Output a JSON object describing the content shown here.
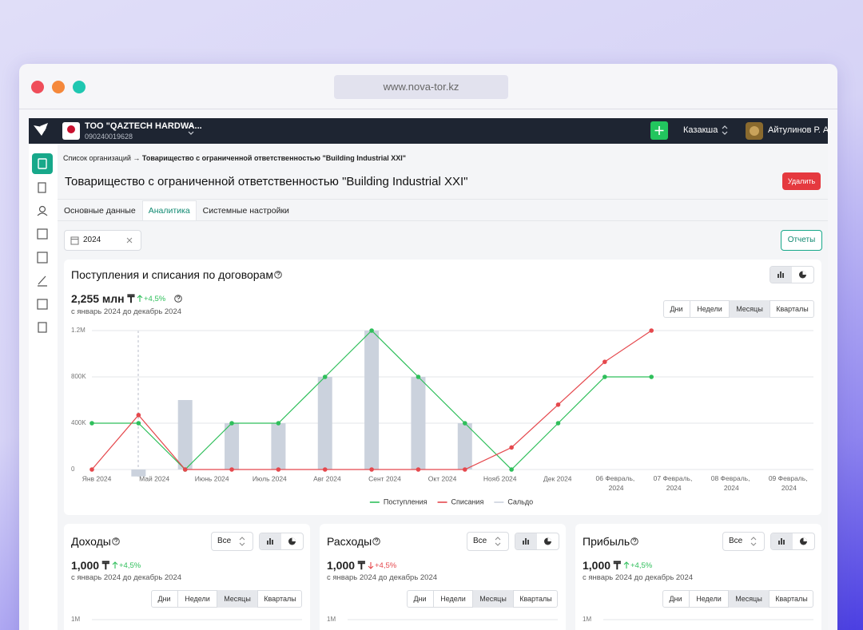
{
  "browser": {
    "url": "www.nova-tor.kz"
  },
  "header": {
    "company": "ТОО \"QAZTECH HARDWA...",
    "company_id": "090240019628",
    "language": "Казакша",
    "user": "Айтулинов Р. А."
  },
  "breadcrumb": {
    "root": "Список организаций",
    "separator": "→",
    "current": "Товарищество с ограниченной ответственностью \"Building Industrial XXI\""
  },
  "page": {
    "title": "Товарищество с ограниченной ответственностью \"Building Industrial XXI\"",
    "delete_button": "Удалить",
    "tabs": [
      "Основные данные",
      "Аналитика",
      "Системные настройки"
    ],
    "active_tab": 1,
    "year_filter": "2024",
    "reports_button": "Отчеты"
  },
  "chart_data": {
    "type": "line",
    "title": "Поступления и списания по договорам",
    "total": "2,255 млн ₸",
    "change": "+4,5%",
    "change_direction": "up",
    "period": "с январь 2024 до декабрь 2024",
    "period_options": [
      "Дни",
      "Недели",
      "Месяцы",
      "Кварталы"
    ],
    "active_period": 2,
    "categories": [
      "Янв 2024",
      "Май 2024",
      "Июнь 2024",
      "Июль 2024",
      "Авг 2024",
      "Сент 2024",
      "Окт 2024",
      "Нояб 2024",
      "Дек 2024",
      "06 Февраль, 2024",
      "07 Февраль, 2024",
      "08 Февраль, 2024",
      "09 Февраль, 2024"
    ],
    "series": [
      {
        "name": "Поступления",
        "type": "line",
        "color": "#2fbf5b",
        "values": [
          400000,
          400000,
          0,
          400000,
          400000,
          800000,
          1200000,
          800000,
          400000,
          0,
          400000,
          800000,
          800000
        ]
      },
      {
        "name": "Списания",
        "type": "line",
        "color": "#e5484d",
        "values": [
          0,
          470000,
          0,
          0,
          0,
          0,
          0,
          0,
          0,
          190000,
          560000,
          930000,
          1200000
        ]
      },
      {
        "name": "Сальдо",
        "type": "bar",
        "color": "#cbd2dd",
        "values": [
          null,
          -60000,
          600000,
          400000,
          400000,
          800000,
          1200000,
          800000,
          400000,
          null,
          null,
          null,
          null
        ]
      }
    ],
    "ylim": [
      0,
      1200000
    ],
    "yticks": [
      0,
      {
        "value": 400000,
        "label": "400K"
      },
      {
        "value": 800000,
        "label": "800K"
      },
      {
        "value": 1200000,
        "label": "1.2M"
      }
    ],
    "grid": true,
    "legend": "bottom"
  },
  "summary_cards": [
    {
      "title": "Доходы",
      "filter": "Все",
      "total": "1,000 ₸",
      "change": "+4,5%",
      "change_direction": "up",
      "period": "с январь 2024 до декабрь 2024",
      "period_options": [
        "Дни",
        "Недели",
        "Месяцы",
        "Кварталы"
      ],
      "active_period": 2,
      "ytick": {
        "value": 1000000,
        "label": "1M"
      }
    },
    {
      "title": "Расходы",
      "filter": "Все",
      "total": "1,000 ₸",
      "change": "+4,5%",
      "change_direction": "down",
      "period": "с январь 2024 до декабрь 2024",
      "period_options": [
        "Дни",
        "Недели",
        "Месяцы",
        "Кварталы"
      ],
      "active_period": 2,
      "ytick": {
        "value": 1000000,
        "label": "1M"
      }
    },
    {
      "title": "Прибыль",
      "filter": "Все",
      "total": "1,000 ₸",
      "change": "+4,5%",
      "change_direction": "up",
      "period": "с январь 2024 до декабрь 2024",
      "period_options": [
        "Дни",
        "Недели",
        "Месяцы",
        "Кварталы"
      ],
      "active_period": 2,
      "ytick": {
        "value": 1000000,
        "label": "1M"
      }
    }
  ]
}
